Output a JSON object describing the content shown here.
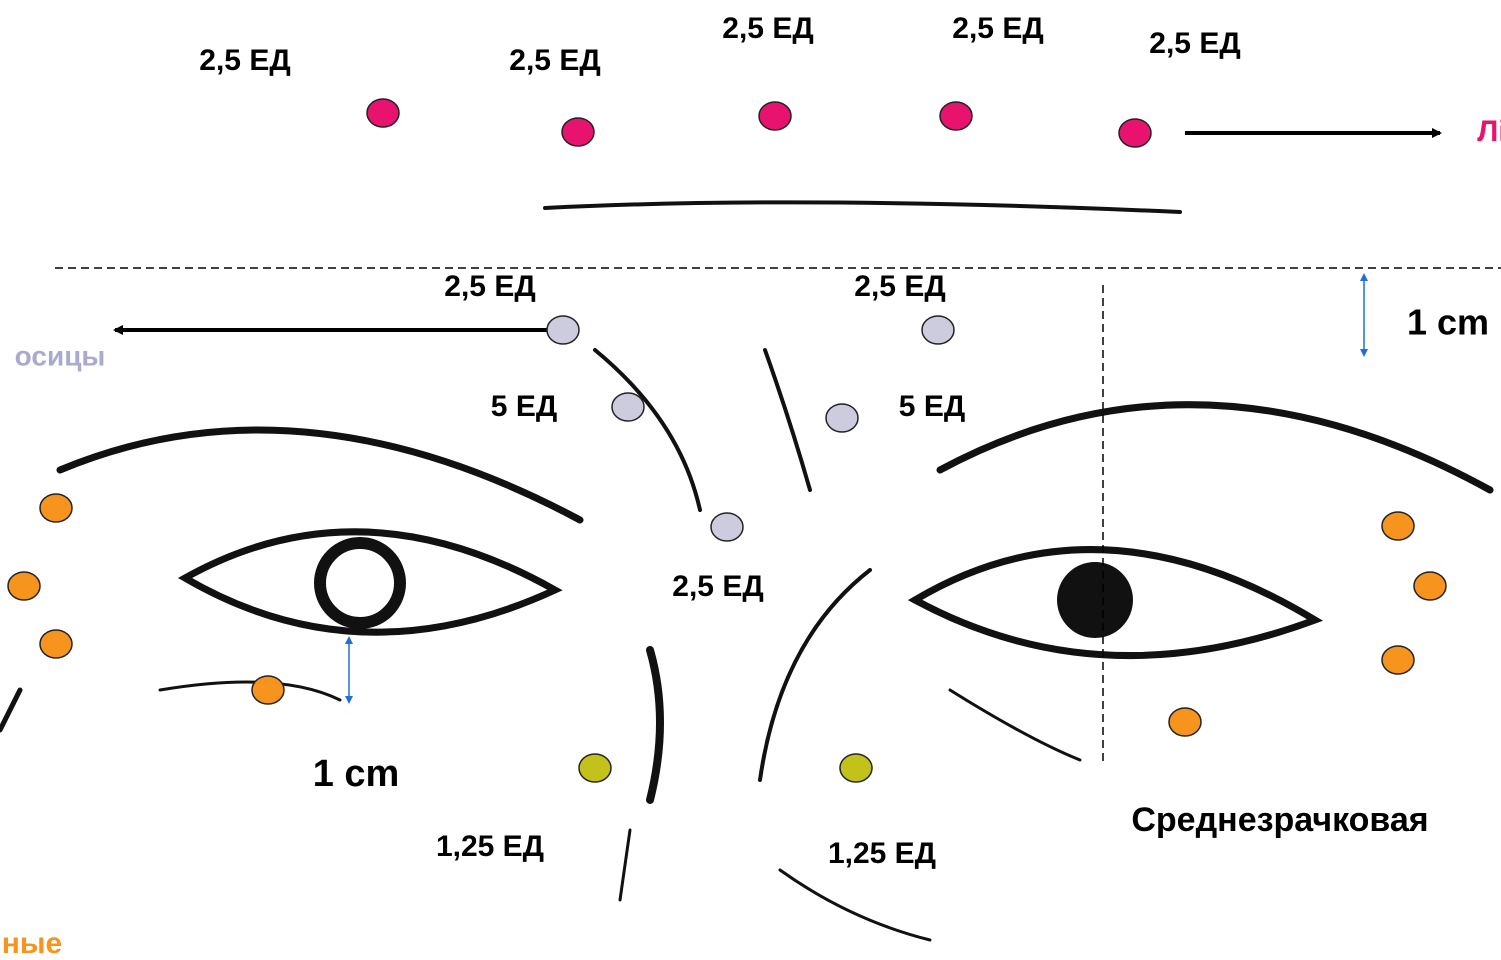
{
  "labels": [
    {
      "text": "2,5 ЕД"
    },
    {
      "text": "2,5 ЕД"
    },
    {
      "text": "2,5 ЕД"
    },
    {
      "text": "2,5 ЕД"
    },
    {
      "text": "2,5 ЕД"
    },
    {
      "text": "Лі"
    },
    {
      "text": "2,5 ЕД"
    },
    {
      "text": "2,5 ЕД"
    },
    {
      "text": "осицы"
    },
    {
      "text": "1 cm"
    },
    {
      "text": "5 ЕД"
    },
    {
      "text": "5 ЕД"
    },
    {
      "text": "2,5 ЕД"
    },
    {
      "text": "1 cm"
    },
    {
      "text": "1,25 ЕД"
    },
    {
      "text": "1,25 ЕД"
    },
    {
      "text": "Среднезрачковая"
    },
    {
      "text": "ные"
    }
  ]
}
